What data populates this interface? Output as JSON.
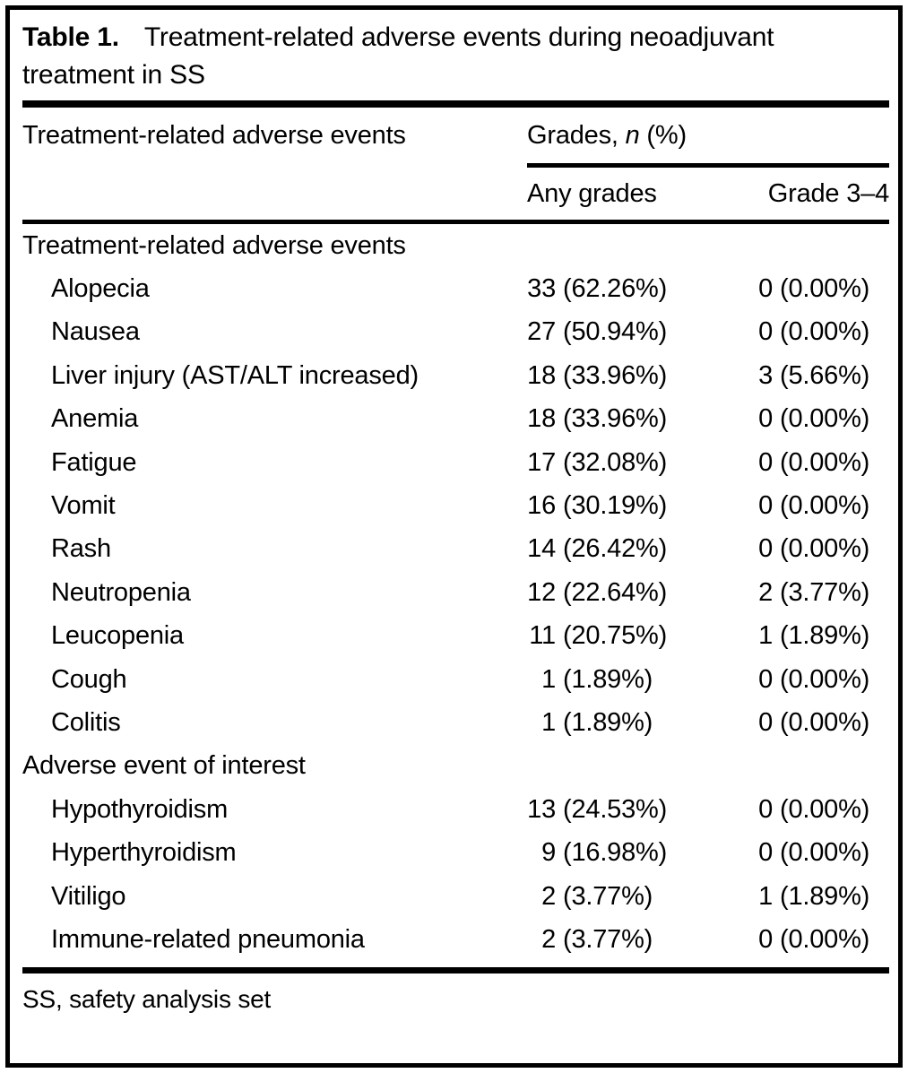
{
  "title": {
    "label": "Table 1.",
    "line1": "Treatment-related adverse events during neoadjuvant",
    "line2": "treatment in SS"
  },
  "header": {
    "col_events": "Treatment-related adverse events",
    "grades_prefix": "Grades, ",
    "grades_n": "n",
    "grades_suffix": " (%)",
    "col_any_grades": "Any grades",
    "col_grade_3_4": "Grade 3–4"
  },
  "table": {
    "rows": [
      {
        "type": "section",
        "label": "Treatment-related adverse events"
      },
      {
        "type": "item",
        "label": "Alopecia",
        "any_n": "33",
        "any_pct": "(62.26%)",
        "g34_n": "0",
        "g34_pct": "(0.00%)"
      },
      {
        "type": "item",
        "label": "Nausea",
        "any_n": "27",
        "any_pct": "(50.94%)",
        "g34_n": "0",
        "g34_pct": "(0.00%)"
      },
      {
        "type": "item",
        "label": "Liver injury (AST/ALT increased)",
        "any_n": "18",
        "any_pct": "(33.96%)",
        "g34_n": "3",
        "g34_pct": "(5.66%)"
      },
      {
        "type": "item",
        "label": "Anemia",
        "any_n": "18",
        "any_pct": "(33.96%)",
        "g34_n": "0",
        "g34_pct": "(0.00%)"
      },
      {
        "type": "item",
        "label": "Fatigue",
        "any_n": "17",
        "any_pct": "(32.08%)",
        "g34_n": "0",
        "g34_pct": "(0.00%)"
      },
      {
        "type": "item",
        "label": "Vomit",
        "any_n": "16",
        "any_pct": "(30.19%)",
        "g34_n": "0",
        "g34_pct": "(0.00%)"
      },
      {
        "type": "item",
        "label": "Rash",
        "any_n": "14",
        "any_pct": "(26.42%)",
        "g34_n": "0",
        "g34_pct": "(0.00%)"
      },
      {
        "type": "item",
        "label": "Neutropenia",
        "any_n": "12",
        "any_pct": "(22.64%)",
        "g34_n": "2",
        "g34_pct": "(3.77%)"
      },
      {
        "type": "item",
        "label": "Leucopenia",
        "any_n": "11",
        "any_pct": "(20.75%)",
        "g34_n": "1",
        "g34_pct": "(1.89%)"
      },
      {
        "type": "item",
        "label": "Cough",
        "any_n": "1",
        "any_pct": "(1.89%)",
        "g34_n": "0",
        "g34_pct": "(0.00%)"
      },
      {
        "type": "item",
        "label": "Colitis",
        "any_n": "1",
        "any_pct": "(1.89%)",
        "g34_n": "0",
        "g34_pct": "(0.00%)"
      },
      {
        "type": "section",
        "label": "Adverse event of interest"
      },
      {
        "type": "item",
        "label": "Hypothyroidism",
        "any_n": "13",
        "any_pct": "(24.53%)",
        "g34_n": "0",
        "g34_pct": "(0.00%)"
      },
      {
        "type": "item",
        "label": "Hyperthyroidism",
        "any_n": "9",
        "any_pct": "(16.98%)",
        "g34_n": "0",
        "g34_pct": "(0.00%)"
      },
      {
        "type": "item",
        "label": "Vitiligo",
        "any_n": "2",
        "any_pct": "(3.77%)",
        "g34_n": "1",
        "g34_pct": "(1.89%)"
      },
      {
        "type": "item",
        "label": "Immune-related pneumonia",
        "any_n": "2",
        "any_pct": "(3.77%)",
        "g34_n": "0",
        "g34_pct": "(0.00%)"
      }
    ]
  },
  "footer": {
    "note": "SS, safety analysis set"
  },
  "colors": {
    "text": "#000000",
    "border": "#000000",
    "background": "#ffffff"
  }
}
